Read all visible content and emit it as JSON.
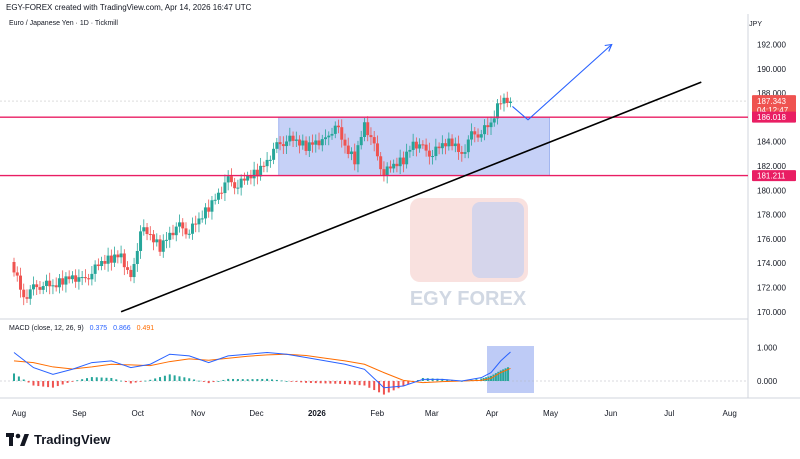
{
  "header": {
    "text": "EGY-FOREX created with TradingView.com, Apr 14, 2026 16:47 UTC"
  },
  "instrument": {
    "label": "Euro / Japanese Yen · 1D · Tickmill"
  },
  "currency": "JPY",
  "watermark": {
    "text": "EGY FOREX"
  },
  "footer": {
    "brand": "TradingView",
    "icon": "tradingview-logo-icon"
  },
  "macd": {
    "label": "MACD (close, 12, 26, 9)",
    "v1": "0.375",
    "v2": "0.866",
    "v3": "0.491",
    "y_ticks": [
      "1.000",
      "0.000"
    ],
    "colors": {
      "macd_line": "#2962ff",
      "signal_line": "#ff6d00",
      "hist_pos": "#26a69a",
      "hist_neg": "#ef5350"
    }
  },
  "price_tags": {
    "current": "187.343",
    "countdown": "04:12:47",
    "resistance": "186.018",
    "support": "181.211"
  },
  "colors": {
    "up": "#26a69a",
    "down": "#ef5350",
    "level_line": "#e91e63",
    "range_box": "#b3c2f4",
    "projection": "#2962ff",
    "trendline": "#000000"
  },
  "chart_data": {
    "type": "candlestick",
    "title": "Euro / Japanese Yen · 1D · Tickmill",
    "x_ticks": [
      "Aug",
      "Sep",
      "Oct",
      "Nov",
      "Dec",
      "2026",
      "Feb",
      "Mar",
      "Apr",
      "May",
      "Jun",
      "Jul",
      "Aug"
    ],
    "y_ticks": [
      "192.000",
      "190.000",
      "188.000",
      "186.000",
      "184.000",
      "182.000",
      "180.000",
      "178.000",
      "176.000",
      "174.000",
      "172.000",
      "170.000"
    ],
    "ylim": [
      169.5,
      193.8
    ],
    "price_series": [
      [
        "2025-08-01",
        173.6
      ],
      [
        "2025-08-06",
        171.2
      ],
      [
        "2025-08-11",
        171.9
      ],
      [
        "2025-08-16",
        172.3
      ],
      [
        "2025-08-21",
        172.0
      ],
      [
        "2025-08-26",
        172.6
      ],
      [
        "2025-08-31",
        173.0
      ],
      [
        "2025-09-05",
        172.5
      ],
      [
        "2025-09-10",
        173.3
      ],
      [
        "2025-09-15",
        174.0
      ],
      [
        "2025-09-20",
        174.4
      ],
      [
        "2025-09-25",
        174.8
      ],
      [
        "2025-09-30",
        172.5
      ],
      [
        "2025-10-05",
        176.8
      ],
      [
        "2025-10-10",
        176.2
      ],
      [
        "2025-10-15",
        175.3
      ],
      [
        "2025-10-20",
        176.5
      ],
      [
        "2025-10-25",
        177.0
      ],
      [
        "2025-10-30",
        176.6
      ],
      [
        "2025-11-04",
        177.5
      ],
      [
        "2025-11-09",
        178.6
      ],
      [
        "2025-11-14",
        179.8
      ],
      [
        "2025-11-19",
        180.8
      ],
      [
        "2025-11-24",
        180.4
      ],
      [
        "2025-11-29",
        181.0
      ],
      [
        "2025-12-04",
        181.5
      ],
      [
        "2025-12-09",
        182.5
      ],
      [
        "2025-12-14",
        183.6
      ],
      [
        "2025-12-19",
        184.2
      ],
      [
        "2025-12-24",
        184.0
      ],
      [
        "2025-12-29",
        183.6
      ],
      [
        "2026-01-03",
        184.1
      ],
      [
        "2026-01-08",
        184.0
      ],
      [
        "2026-01-13",
        185.5
      ],
      [
        "2026-01-18",
        183.5
      ],
      [
        "2026-01-23",
        182.5
      ],
      [
        "2026-01-28",
        185.6
      ],
      [
        "2026-02-02",
        183.5
      ],
      [
        "2026-02-07",
        181.4
      ],
      [
        "2026-02-12",
        182.0
      ],
      [
        "2026-02-17",
        182.5
      ],
      [
        "2026-02-22",
        184.0
      ],
      [
        "2026-02-27",
        183.4
      ],
      [
        "2026-03-04",
        183.0
      ],
      [
        "2026-03-09",
        183.7
      ],
      [
        "2026-03-14",
        184.0
      ],
      [
        "2026-03-19",
        183.0
      ],
      [
        "2026-03-24",
        184.5
      ],
      [
        "2026-03-29",
        184.8
      ],
      [
        "2026-04-03",
        185.4
      ],
      [
        "2026-04-08",
        187.5
      ],
      [
        "2026-04-13",
        187.3
      ]
    ],
    "levels": {
      "resistance": 186.018,
      "support": 181.211
    },
    "range_box": {
      "x": [
        "2025-12-15",
        "2026-05-03"
      ],
      "y": [
        181.211,
        186.018
      ]
    },
    "trendline": {
      "x": [
        "2025-09-25",
        "2026-07-20"
      ],
      "y": [
        170.0,
        188.9
      ]
    },
    "projection": [
      [
        "2026-04-14",
        186.9
      ],
      [
        "2026-04-22",
        185.8
      ],
      [
        "2026-06-04",
        192.0
      ]
    ],
    "macd_series": [
      [
        "2025-08-01",
        0.85,
        0.6
      ],
      [
        "2025-08-11",
        0.4,
        0.55
      ],
      [
        "2025-08-21",
        0.2,
        0.42
      ],
      [
        "2025-08-31",
        0.35,
        0.36
      ],
      [
        "2025-09-10",
        0.55,
        0.42
      ],
      [
        "2025-09-20",
        0.6,
        0.5
      ],
      [
        "2025-09-30",
        0.4,
        0.48
      ],
      [
        "2025-10-10",
        0.5,
        0.46
      ],
      [
        "2025-10-20",
        0.8,
        0.58
      ],
      [
        "2025-10-30",
        0.75,
        0.66
      ],
      [
        "2025-11-09",
        0.55,
        0.62
      ],
      [
        "2025-11-19",
        0.75,
        0.68
      ],
      [
        "2025-11-29",
        0.8,
        0.74
      ],
      [
        "2025-12-09",
        0.85,
        0.78
      ],
      [
        "2025-12-19",
        0.8,
        0.8
      ],
      [
        "2025-12-29",
        0.7,
        0.76
      ],
      [
        "2026-01-08",
        0.6,
        0.68
      ],
      [
        "2026-01-18",
        0.5,
        0.6
      ],
      [
        "2026-01-28",
        0.35,
        0.5
      ],
      [
        "2026-02-07",
        -0.2,
        0.25
      ],
      [
        "2026-02-17",
        -0.15,
        0.02
      ],
      [
        "2026-02-27",
        0.05,
        -0.05
      ],
      [
        "2026-03-09",
        0.05,
        -0.02
      ],
      [
        "2026-03-19",
        0.0,
        0.0
      ],
      [
        "2026-03-29",
        0.1,
        0.02
      ],
      [
        "2026-04-03",
        0.25,
        0.08
      ],
      [
        "2026-04-08",
        0.6,
        0.25
      ],
      [
        "2026-04-13",
        0.866,
        0.375
      ]
    ]
  }
}
